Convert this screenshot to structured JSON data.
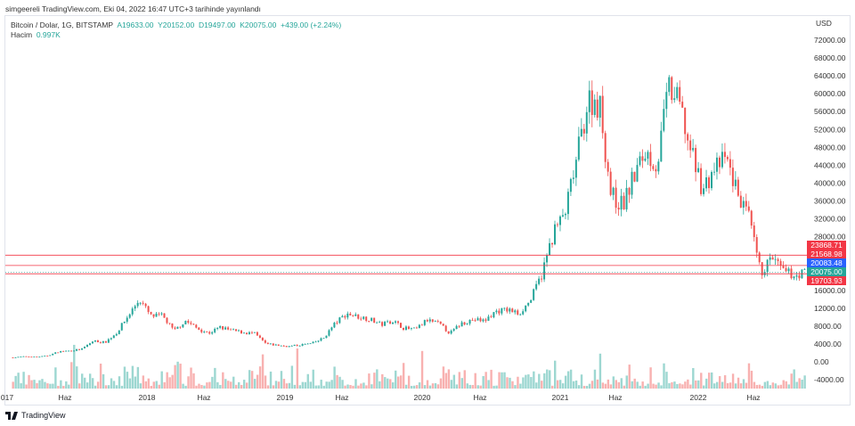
{
  "published": "simgeereli TradingView.com, Eki 04, 2022 16:47 UTC+3 tarihinde yayınlandı",
  "legend": {
    "symbol": "Bitcoin / Dolar, 1G, BITSTAMP",
    "open": "A19633.00",
    "high": "Y20152.00",
    "low": "D19497.00",
    "close": "K20075.00",
    "change": "+439.00 (+2.24%)",
    "volume_label": "Hacim",
    "volume_value": "0.997K"
  },
  "footer": {
    "brand": "TradingView"
  },
  "tags": [
    {
      "text": "23868.71",
      "color": "#f23645"
    },
    {
      "text": "21568.98",
      "color": "#f23645"
    },
    {
      "text": "20083.48",
      "color": "#2962ff"
    },
    {
      "text": "20075.00",
      "color": "#26a69a"
    },
    {
      "text": "19703.93",
      "color": "#f23645"
    }
  ],
  "chart_data": {
    "type": "candlestick",
    "currency": "USD",
    "y_ticks": [
      72000,
      68000,
      64000,
      60000,
      56000,
      52000,
      48000,
      44000,
      40000,
      36000,
      32000,
      28000,
      16000,
      12000,
      8000,
      4000,
      0,
      -4000
    ],
    "ylim": [
      -4000,
      72000
    ],
    "x_labels": [
      "017",
      "Haz",
      "2018",
      "Haz",
      "2019",
      "Haz",
      "2020",
      "Haz",
      "2021",
      "Haz",
      "2022",
      "Haz"
    ],
    "monthly_close_start": "2017-01",
    "monthly_close": [
      970,
      1190,
      1080,
      1350,
      2300,
      2480,
      2870,
      4700,
      4340,
      6450,
      10200,
      14000,
      10200,
      10300,
      6900,
      9200,
      7500,
      6400,
      7700,
      7000,
      6600,
      6300,
      4000,
      3700,
      3450,
      3800,
      4100,
      5300,
      8600,
      10800,
      10100,
      9600,
      8300,
      9200,
      7550,
      7200,
      9350,
      8550,
      6400,
      8650,
      9450,
      9150,
      11350,
      11650,
      10800,
      13800,
      19700,
      29000,
      33100,
      45200,
      58800,
      57700,
      37300,
      35000,
      41500,
      47100,
      43800,
      61300,
      57000,
      46200,
      38500,
      43200,
      45500,
      37700,
      31800,
      19900,
      23300,
      20050,
      19400,
      20075
    ],
    "horizontal_levels": [
      23868.71,
      21568.98,
      20083.48,
      20075.0,
      19703.93
    ]
  }
}
